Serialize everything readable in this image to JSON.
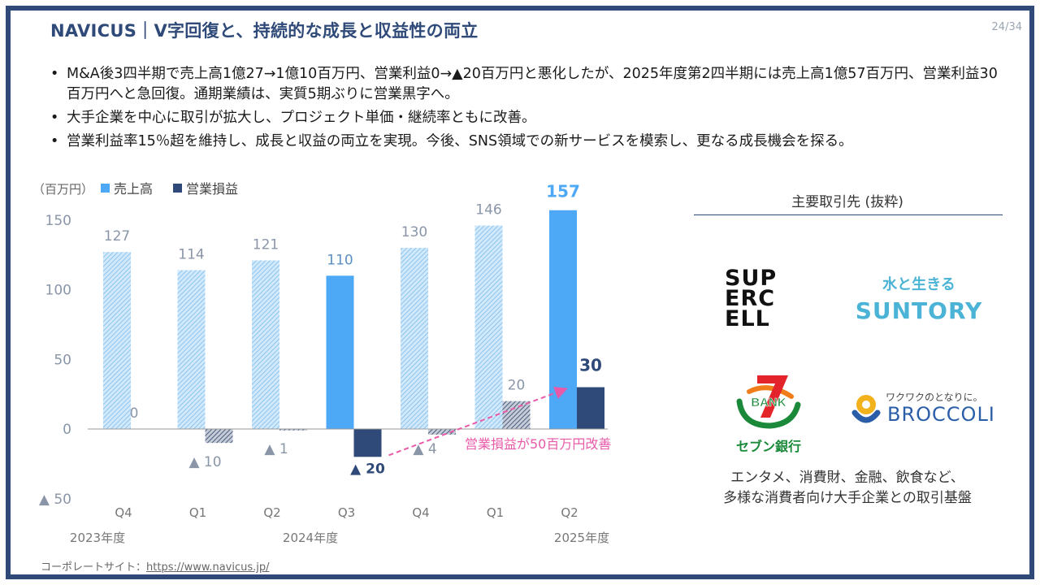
{
  "header": {
    "title": "NAVICUS｜V字回復と、持続的な成長と収益性の両立",
    "page_number": "24/34"
  },
  "bullets": [
    "M&A後3四半期で売上高1億27→1億10百万円、営業利益0→▲20百万円と悪化したが、2025年度第2四半期には売上高1億57百万円、営業利益30百万円へと急回復。通期業績は、実質5期ぶりに営業黒字へ。",
    "大手企業を中心に取引が拡大し、プロジェクト単価・継続率ともに改善。",
    "営業利益率15％超を維持し、成長と収益の両立を実現。今後、SNS領域での新サービスを模索し、更なる成長機会を探る。"
  ],
  "chart_data": {
    "type": "bar",
    "unit_label": "（百万円）",
    "categories": [
      "Q4",
      "Q1",
      "Q2",
      "Q3",
      "Q4",
      "Q1",
      "Q2"
    ],
    "year_labels": [
      "2023年度",
      "2024年度",
      "2025年度"
    ],
    "series": [
      {
        "name": "売上高",
        "values": [
          127,
          114,
          121,
          110,
          130,
          146,
          157
        ],
        "labels": [
          "127",
          "114",
          "121",
          "110",
          "130",
          "146",
          "157"
        ],
        "color": "#4da8f5"
      },
      {
        "name": "営業損益",
        "values": [
          0,
          -10,
          -1,
          -20,
          -4,
          20,
          30
        ],
        "labels": [
          "0",
          "▲ 10",
          "▲ 1",
          "▲ 20",
          "▲ 4",
          "20",
          "30"
        ],
        "color": "#2f4a78"
      }
    ],
    "highlighted_categories": [
      3,
      6
    ],
    "ylim": [
      -50,
      150
    ],
    "y_ticks": [
      -50,
      0,
      50,
      100,
      150
    ],
    "y_tick_labels": [
      "▲ 50",
      "0",
      "50",
      "100",
      "150"
    ],
    "annotation": "営業損益が50百万円改善",
    "annotation_color": "#e85aa8"
  },
  "partners": {
    "title": "主要取引先 (抜粋)",
    "logos": {
      "supercell": [
        "SUP",
        "ERC",
        "ELL"
      ],
      "suntory_tagline": "水と生きる",
      "suntory_name": "SUNTORY",
      "seven_bank_mark": "BANK",
      "seven_bank_name": "セブン銀行",
      "broccoli_tagline": "ワクワクのとなりに。",
      "broccoli_name": "BROCCOLI"
    },
    "caption_lines": [
      "エンタメ、消費財、金融、飲食など、",
      "多様な消費者向け大手企業との取引基盤"
    ]
  },
  "footer": {
    "label": "コーポレートサイト：",
    "url": "https://www.navicus.jp/"
  }
}
